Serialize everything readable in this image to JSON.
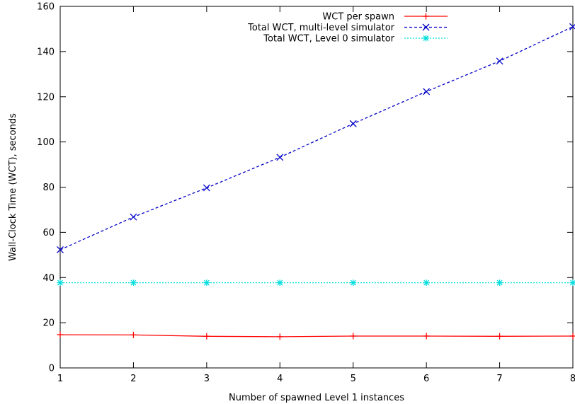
{
  "chart_data": {
    "type": "line",
    "title": "",
    "xlabel": "Number of spawned Level 1 instances",
    "ylabel": "Wall-Clock Time (WCT), seconds",
    "xlim": [
      1,
      8
    ],
    "ylim": [
      0,
      160
    ],
    "xticks": [
      1,
      2,
      3,
      4,
      5,
      6,
      7,
      8
    ],
    "yticks": [
      0,
      20,
      40,
      60,
      80,
      100,
      120,
      140,
      160
    ],
    "grid": false,
    "legend_position": "top-right",
    "x": [
      1,
      2,
      3,
      4,
      5,
      6,
      7,
      8
    ],
    "series": [
      {
        "name": "WCT per spawn",
        "color": "#ff0000",
        "marker": "plus",
        "dash": "solid",
        "values": [
          14.7,
          14.6,
          14.0,
          13.8,
          14.1,
          14.1,
          14.0,
          14.1
        ]
      },
      {
        "name": "Total WCT, multi-level simulator",
        "color": "#0000c8",
        "marker": "cross",
        "dash": "dashed",
        "values": [
          52.3,
          66.8,
          79.7,
          93.2,
          108.1,
          122.3,
          135.8,
          151.0
        ]
      },
      {
        "name": "Total WCT, Level 0 simulator",
        "color": "#00dddd",
        "marker": "star",
        "dash": "dotted",
        "values": [
          37.7,
          37.7,
          37.7,
          37.7,
          37.7,
          37.7,
          37.7,
          37.7
        ]
      }
    ]
  }
}
